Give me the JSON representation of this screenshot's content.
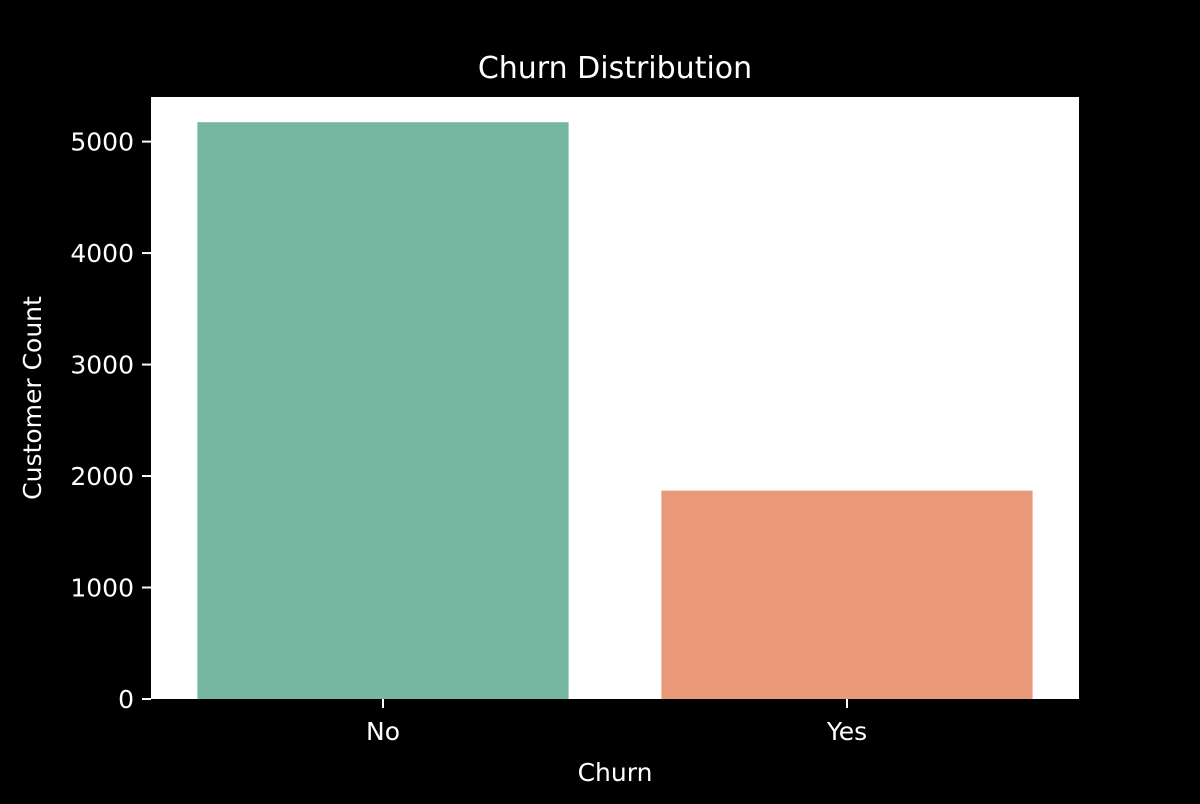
{
  "chart_data": {
    "type": "bar",
    "title": "Churn Distribution",
    "xlabel": "Churn",
    "ylabel": "Customer Count",
    "categories": [
      "No",
      "Yes"
    ],
    "values": [
      5174,
      1869
    ],
    "ylim": [
      0,
      5400
    ],
    "yticks": [
      0,
      1000,
      2000,
      3000,
      4000,
      5000
    ],
    "ytick_labels": [
      "0",
      "1000",
      "2000",
      "3000",
      "4000",
      "5000"
    ],
    "colors": [
      "#76b7a1",
      "#e99977"
    ],
    "background": "#000000",
    "plot_background": "#ffffff",
    "text_color": "#ffffff",
    "grid": false,
    "legend": "none"
  }
}
